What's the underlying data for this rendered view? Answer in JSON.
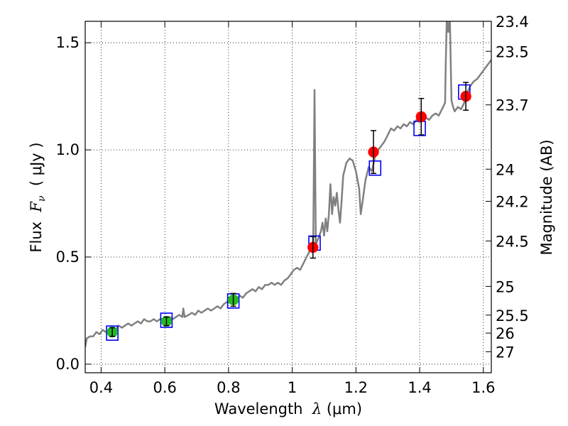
{
  "chart_data": {
    "type": "line",
    "xlabel": {
      "prefix": "Wavelength  ",
      "symbol": "λ",
      "unit": " (μm)"
    },
    "ylabel": {
      "prefix": "Flux  ",
      "symbol": "F",
      "subscript": "ν",
      "unit": "  ( μJy )"
    },
    "y2label": "Magnitude (AB)",
    "xlim": [
      0.35,
      1.625
    ],
    "ylim": [
      -0.04,
      1.6
    ],
    "x_ticks": [
      0.4,
      0.6,
      0.8,
      1.0,
      1.2,
      1.4,
      1.6
    ],
    "x_tick_labels": [
      "0.4",
      "0.6",
      "0.8",
      "1",
      "1.2",
      "1.4",
      "1.6"
    ],
    "y_ticks": [
      0.0,
      0.5,
      1.0,
      1.5
    ],
    "y_tick_labels": [
      "0.0",
      "0.5",
      "1.0",
      "1.5"
    ],
    "y2_ticks": [
      {
        "label": "23.4",
        "flux": 1.6
      },
      {
        "label": "23.5",
        "flux": 1.46
      },
      {
        "label": "23.7",
        "flux": 1.21
      },
      {
        "label": "24",
        "flux": 0.91
      },
      {
        "label": "24.2",
        "flux": 0.76
      },
      {
        "label": "24.5",
        "flux": 0.575
      },
      {
        "label": "25",
        "flux": 0.363
      },
      {
        "label": "25.5",
        "flux": 0.229
      },
      {
        "label": "26",
        "flux": 0.145
      },
      {
        "label": "27",
        "flux": 0.058
      }
    ],
    "grid": true,
    "colors": {
      "sed": "#808080",
      "green_points": "#22bb22",
      "red_points": "#ff0000",
      "model_boxes": "#0000ff",
      "errorbar": "#000000"
    },
    "series": [
      {
        "kind": "model_spectrum",
        "points": [
          [
            0.35,
            0.08
          ],
          [
            0.355,
            0.12
          ],
          [
            0.365,
            0.13
          ],
          [
            0.375,
            0.13
          ],
          [
            0.385,
            0.15
          ],
          [
            0.395,
            0.14
          ],
          [
            0.405,
            0.16
          ],
          [
            0.415,
            0.15
          ],
          [
            0.425,
            0.16
          ],
          [
            0.435,
            0.17
          ],
          [
            0.445,
            0.16
          ],
          [
            0.455,
            0.18
          ],
          [
            0.465,
            0.17
          ],
          [
            0.475,
            0.18
          ],
          [
            0.485,
            0.19
          ],
          [
            0.495,
            0.18
          ],
          [
            0.505,
            0.19
          ],
          [
            0.515,
            0.2
          ],
          [
            0.525,
            0.19
          ],
          [
            0.535,
            0.21
          ],
          [
            0.545,
            0.2
          ],
          [
            0.555,
            0.2
          ],
          [
            0.565,
            0.21
          ],
          [
            0.575,
            0.2
          ],
          [
            0.585,
            0.21
          ],
          [
            0.595,
            0.21
          ],
          [
            0.605,
            0.2
          ],
          [
            0.615,
            0.22
          ],
          [
            0.625,
            0.21
          ],
          [
            0.635,
            0.22
          ],
          [
            0.645,
            0.23
          ],
          [
            0.655,
            0.22
          ],
          [
            0.658,
            0.26
          ],
          [
            0.662,
            0.22
          ],
          [
            0.675,
            0.23
          ],
          [
            0.685,
            0.24
          ],
          [
            0.695,
            0.23
          ],
          [
            0.705,
            0.25
          ],
          [
            0.715,
            0.24
          ],
          [
            0.725,
            0.25
          ],
          [
            0.735,
            0.26
          ],
          [
            0.745,
            0.25
          ],
          [
            0.755,
            0.26
          ],
          [
            0.765,
            0.27
          ],
          [
            0.775,
            0.26
          ],
          [
            0.785,
            0.28
          ],
          [
            0.795,
            0.29
          ],
          [
            0.805,
            0.3
          ],
          [
            0.815,
            0.31
          ],
          [
            0.825,
            0.3
          ],
          [
            0.835,
            0.32
          ],
          [
            0.845,
            0.31
          ],
          [
            0.855,
            0.33
          ],
          [
            0.865,
            0.34
          ],
          [
            0.875,
            0.35
          ],
          [
            0.885,
            0.34
          ],
          [
            0.895,
            0.36
          ],
          [
            0.905,
            0.35
          ],
          [
            0.915,
            0.37
          ],
          [
            0.925,
            0.37
          ],
          [
            0.935,
            0.38
          ],
          [
            0.945,
            0.37
          ],
          [
            0.955,
            0.38
          ],
          [
            0.965,
            0.37
          ],
          [
            0.975,
            0.39
          ],
          [
            0.985,
            0.4
          ],
          [
            0.995,
            0.42
          ],
          [
            1.005,
            0.44
          ],
          [
            1.015,
            0.45
          ],
          [
            1.025,
            0.44
          ],
          [
            1.035,
            0.47
          ],
          [
            1.045,
            0.5
          ],
          [
            1.052,
            0.52
          ],
          [
            1.06,
            0.54
          ],
          [
            1.066,
            0.57
          ],
          [
            1.07,
            1.28
          ],
          [
            1.074,
            0.56
          ],
          [
            1.08,
            0.58
          ],
          [
            1.085,
            0.6
          ],
          [
            1.09,
            0.62
          ],
          [
            1.095,
            0.66
          ],
          [
            1.1,
            0.6
          ],
          [
            1.105,
            0.68
          ],
          [
            1.11,
            0.62
          ],
          [
            1.115,
            0.7
          ],
          [
            1.12,
            0.84
          ],
          [
            1.125,
            0.7
          ],
          [
            1.13,
            0.78
          ],
          [
            1.135,
            0.74
          ],
          [
            1.14,
            0.8
          ],
          [
            1.145,
            0.72
          ],
          [
            1.15,
            0.66
          ],
          [
            1.155,
            0.76
          ],
          [
            1.16,
            0.88
          ],
          [
            1.17,
            0.94
          ],
          [
            1.18,
            0.96
          ],
          [
            1.19,
            0.95
          ],
          [
            1.2,
            0.9
          ],
          [
            1.21,
            0.82
          ],
          [
            1.215,
            0.7
          ],
          [
            1.22,
            0.75
          ],
          [
            1.23,
            0.86
          ],
          [
            1.24,
            0.92
          ],
          [
            1.25,
            0.9
          ],
          [
            1.26,
            0.97
          ],
          [
            1.27,
            1.0
          ],
          [
            1.28,
            1.02
          ],
          [
            1.29,
            1.04
          ],
          [
            1.3,
            1.07
          ],
          [
            1.31,
            1.1
          ],
          [
            1.32,
            1.09
          ],
          [
            1.33,
            1.11
          ],
          [
            1.34,
            1.1
          ],
          [
            1.35,
            1.12
          ],
          [
            1.36,
            1.11
          ],
          [
            1.37,
            1.13
          ],
          [
            1.38,
            1.12
          ],
          [
            1.39,
            1.14
          ],
          [
            1.4,
            1.13
          ],
          [
            1.41,
            1.14
          ],
          [
            1.42,
            1.15
          ],
          [
            1.43,
            1.14
          ],
          [
            1.44,
            1.16
          ],
          [
            1.45,
            1.17
          ],
          [
            1.46,
            1.16
          ],
          [
            1.47,
            1.19
          ],
          [
            1.48,
            1.22
          ],
          [
            1.482,
            1.4
          ],
          [
            1.485,
            1.6
          ],
          [
            1.488,
            1.6
          ],
          [
            1.49,
            1.55
          ],
          [
            1.495,
            1.6
          ],
          [
            1.5,
            1.23
          ],
          [
            1.505,
            1.2
          ],
          [
            1.51,
            1.18
          ],
          [
            1.52,
            1.2
          ],
          [
            1.53,
            1.19
          ],
          [
            1.54,
            1.22
          ],
          [
            1.55,
            1.27
          ],
          [
            1.56,
            1.3
          ],
          [
            1.57,
            1.32
          ],
          [
            1.58,
            1.33
          ],
          [
            1.59,
            1.35
          ],
          [
            1.6,
            1.37
          ],
          [
            1.61,
            1.39
          ],
          [
            1.625,
            1.42
          ]
        ]
      },
      {
        "kind": "observed_green",
        "points": [
          {
            "x": 0.435,
            "y": 0.15,
            "err": 0.02
          },
          {
            "x": 0.605,
            "y": 0.2,
            "err": 0.02
          },
          {
            "x": 0.815,
            "y": 0.3,
            "err": 0.03
          }
        ]
      },
      {
        "kind": "observed_red",
        "points": [
          {
            "x": 1.065,
            "y": 0.545,
            "err": 0.05
          },
          {
            "x": 1.255,
            "y": 0.99,
            "err": 0.1
          },
          {
            "x": 1.405,
            "y": 1.155,
            "err": 0.085
          },
          {
            "x": 1.545,
            "y": 1.25,
            "err": 0.065
          }
        ]
      },
      {
        "kind": "model_boxes",
        "points": [
          {
            "x": 0.435,
            "y": 0.145
          },
          {
            "x": 0.605,
            "y": 0.205
          },
          {
            "x": 0.815,
            "y": 0.295
          },
          {
            "x": 1.07,
            "y": 0.565
          },
          {
            "x": 1.26,
            "y": 0.915
          },
          {
            "x": 1.4,
            "y": 1.1
          },
          {
            "x": 1.54,
            "y": 1.27
          }
        ]
      }
    ]
  }
}
